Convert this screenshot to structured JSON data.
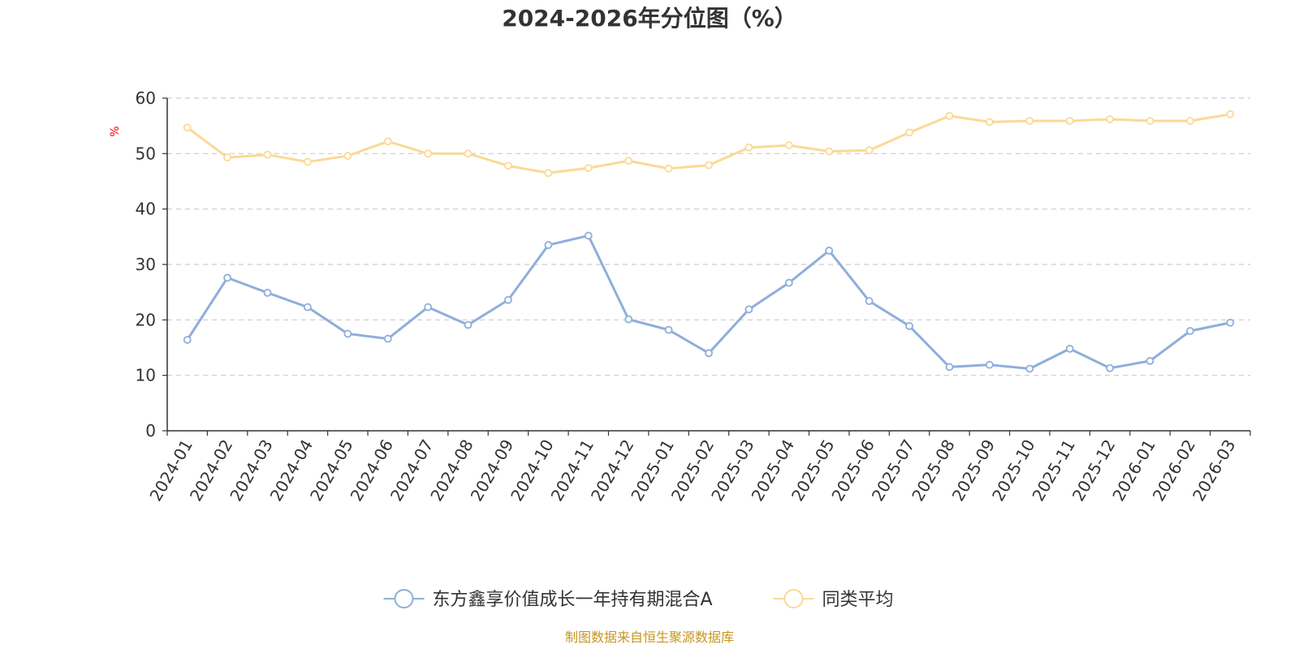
{
  "chart_data": {
    "type": "line",
    "title": "2024-2026年分位图（%）",
    "ylabel": "%",
    "xlabel": "",
    "ylim": [
      0,
      60
    ],
    "yticks": [
      0,
      10,
      20,
      30,
      40,
      50,
      60
    ],
    "grid": true,
    "legend_position": "bottom-center",
    "categories": [
      "2024-01",
      "2024-02",
      "2024-03",
      "2024-04",
      "2024-05",
      "2024-06",
      "2024-07",
      "2024-08",
      "2024-09",
      "2024-10",
      "2024-11",
      "2024-12",
      "2025-01",
      "2025-02",
      "2025-03",
      "2025-04",
      "2025-05",
      "2025-06",
      "2025-07",
      "2025-08",
      "2025-09",
      "2025-10",
      "2025-11",
      "2025-12",
      "2026-01",
      "2026-02",
      "2026-03"
    ],
    "series": [
      {
        "name": "东方鑫享价值成长一年持有期混合A",
        "color": "#8eaedb",
        "values": [
          16.4,
          27.6,
          24.9,
          22.3,
          17.5,
          16.6,
          22.3,
          19.1,
          23.6,
          33.5,
          35.2,
          20.1,
          18.2,
          14.0,
          21.9,
          26.7,
          32.5,
          23.4,
          18.9,
          11.5,
          11.9,
          11.2,
          14.8,
          11.3,
          12.6,
          18.0,
          19.5
        ]
      },
      {
        "name": "同类平均",
        "color": "#fbd996",
        "values": [
          54.7,
          49.3,
          49.8,
          48.5,
          49.6,
          52.2,
          50.0,
          50.0,
          47.8,
          46.5,
          47.4,
          48.7,
          47.3,
          47.9,
          51.1,
          51.5,
          50.4,
          50.6,
          53.8,
          56.8,
          55.7,
          55.9,
          55.9,
          56.2,
          55.9,
          55.9,
          57.1
        ]
      }
    ]
  },
  "source_text": "制图数据来自恒生聚源数据库"
}
